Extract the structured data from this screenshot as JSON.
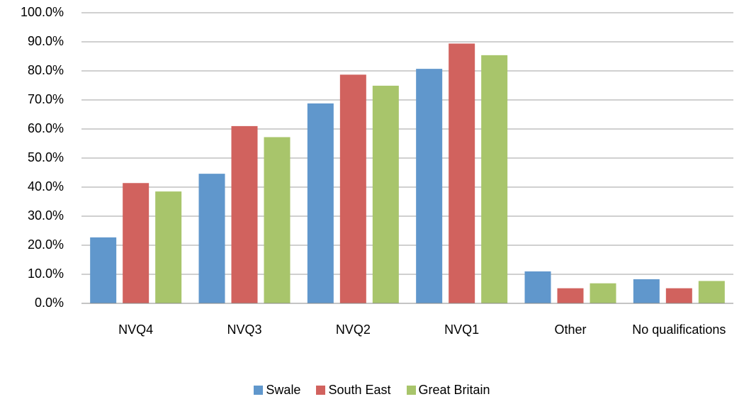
{
  "chart_data": {
    "type": "bar",
    "categories": [
      "NVQ4",
      "NVQ3",
      "NVQ2",
      "NVQ1",
      "Other",
      "No qualifications"
    ],
    "series": [
      {
        "name": "Swale",
        "color": "#6097cc",
        "values": [
          22.7,
          44.6,
          68.8,
          80.7,
          11.0,
          8.3
        ]
      },
      {
        "name": "South East",
        "color": "#d1625e",
        "values": [
          41.4,
          61.0,
          78.7,
          89.4,
          5.2,
          5.2
        ]
      },
      {
        "name": "Great Britain",
        "color": "#a8c56b",
        "values": [
          38.5,
          57.2,
          74.9,
          85.4,
          6.9,
          7.7
        ]
      }
    ],
    "ylim": [
      0,
      100
    ],
    "yticks": [
      {
        "value": 0,
        "label": "0.0%"
      },
      {
        "value": 10,
        "label": "10.0%"
      },
      {
        "value": 20,
        "label": "20.0%"
      },
      {
        "value": 30,
        "label": "30.0%"
      },
      {
        "value": 40,
        "label": "40.0%"
      },
      {
        "value": 50,
        "label": "50.0%"
      },
      {
        "value": 60,
        "label": "60.0%"
      },
      {
        "value": 70,
        "label": "70.0%"
      },
      {
        "value": 80,
        "label": "80.0%"
      },
      {
        "value": 90,
        "label": "90.0%"
      },
      {
        "value": 100,
        "label": "100.0%"
      }
    ],
    "grid": true,
    "legend": "bottom"
  }
}
